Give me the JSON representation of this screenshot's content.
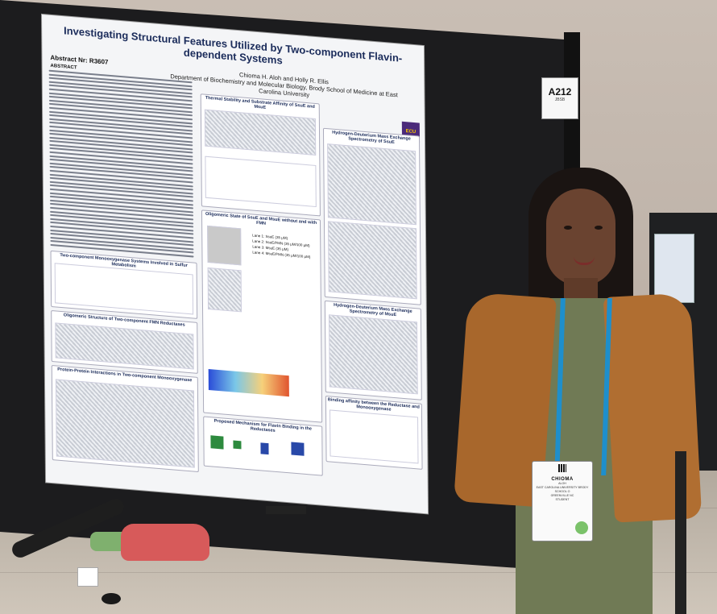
{
  "poster": {
    "title_line1": "Investigating Structural Features Utilized by Two-component Flavin-dependent Systems",
    "authors": "Chioma H. Aloh and Holly R. Ellis",
    "department": "Department of Biochemistry and Molecular Biology, Brody School of Medicine at East Carolina University",
    "abstract_number": "Abstract Nr: R3607",
    "abstract_label": "ABSTRACT",
    "logo_text": "ECU",
    "sections": {
      "thermal": "Thermal Stability and Substrate Affinity of SsuE and MsuE",
      "hdx_ssue": "Hydrogen-Deuterium Mass Exchange Spectrometry of SsuE",
      "two_component": "Two-component Monooxygenase Systems Involved in Sulfur Metabolism",
      "oligomeric_structure": "Oligomeric Structure of Two-component FMN Reductases",
      "oligomeric_state": "Oligomeric State of SsuE and MsuE without and with FMN",
      "hdx_msue": "Hydrogen-Deuterium Mass Exchange Spectrometry of MsuE",
      "ppi": "Protein-Protein Interactions in Two-component Monooxygenase",
      "binding": "Binding affinity between the Reductase and Monooxygenase",
      "mechanism": "Proposed Mechanism for Flavin Binding in the Reductases"
    },
    "lanes": [
      "Lane 1: SsuE (35 μM)",
      "Lane 2: SsuE/FMN (35 μM/100 μM)",
      "Lane 3: MsuE (35 μM)",
      "Lane 4: MsuE/FMN (35 μM/100 μM)"
    ]
  },
  "booth_tag": {
    "number": "A212",
    "sub": "JBSB"
  },
  "badge": {
    "name": "CHIOMA",
    "surname": "ALOH",
    "line1": "EAST CAROLINA UNIVERSITY BRODY SCHOOL O",
    "line2": "GREENVILLE NC",
    "role": "STUDENT"
  },
  "colors": {
    "board": "#1c1c1e",
    "poster_title": "#1a2b5a",
    "jacket": "#a8672c",
    "top": "#707a55",
    "lanyard": "#1e8fcc",
    "ecu_purple": "#4b2a7a"
  }
}
